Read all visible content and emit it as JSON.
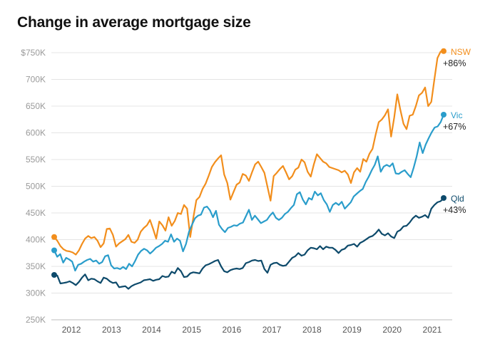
{
  "chart_data": {
    "type": "line",
    "title": "Change in average mortgage size",
    "xlabel": "",
    "ylabel": "",
    "x_ticks": [
      "2012",
      "2013",
      "2014",
      "2015",
      "2016",
      "2017",
      "2018",
      "2019",
      "2020",
      "2021"
    ],
    "x_start": 2011.5,
    "x_end": 2021.5,
    "y_ticks": [
      "250K",
      "300K",
      "350K",
      "400K",
      "450K",
      "500K",
      "550K",
      "600K",
      "650K",
      "700K",
      "$750K"
    ],
    "ylim": [
      250000,
      750000
    ],
    "grid": true,
    "legend": "end-of-line labels",
    "series": [
      {
        "name": "NSW",
        "change_label": "+86%",
        "color": "#f28e1c",
        "values": [
          405000,
          398000,
          388000,
          382000,
          379000,
          378000,
          376000,
          372000,
          380000,
          392000,
          402000,
          407000,
          403000,
          405000,
          398000,
          386000,
          393000,
          420000,
          421000,
          409000,
          387000,
          393000,
          397000,
          401000,
          409000,
          396000,
          394000,
          400000,
          415000,
          422000,
          427000,
          437000,
          420000,
          402000,
          434000,
          427000,
          417000,
          442000,
          426000,
          435000,
          450000,
          448000,
          465000,
          458000,
          405000,
          441000,
          474000,
          480000,
          495000,
          505000,
          520000,
          536000,
          545000,
          552000,
          558000,
          522000,
          506000,
          475000,
          489000,
          503000,
          507000,
          523000,
          520000,
          510000,
          526000,
          541000,
          546000,
          536000,
          525000,
          499000,
          473000,
          519000,
          525000,
          532000,
          538000,
          526000,
          513000,
          519000,
          531000,
          535000,
          550000,
          545000,
          527000,
          518000,
          541000,
          560000,
          553000,
          546000,
          543000,
          536000,
          534000,
          532000,
          530000,
          526000,
          529000,
          522000,
          506000,
          526000,
          534000,
          527000,
          551000,
          546000,
          561000,
          570000,
          597000,
          620000,
          625000,
          633000,
          644000,
          593000,
          629000,
          672000,
          643000,
          617000,
          607000,
          632000,
          634000,
          650000,
          670000,
          675000,
          685000,
          650000,
          658000,
          700000,
          740000,
          752000,
          753000
        ]
      },
      {
        "name": "Vic",
        "change_label": "+67%",
        "color": "#2a9dcb",
        "values": [
          380000,
          368000,
          373000,
          357000,
          366000,
          363000,
          359000,
          342000,
          353000,
          355000,
          359000,
          362000,
          364000,
          359000,
          361000,
          355000,
          358000,
          369000,
          371000,
          352000,
          346000,
          347000,
          345000,
          349000,
          345000,
          355000,
          350000,
          360000,
          372000,
          379000,
          383000,
          380000,
          374000,
          379000,
          385000,
          388000,
          392000,
          398000,
          396000,
          410000,
          396000,
          402000,
          398000,
          378000,
          392000,
          415000,
          428000,
          440000,
          445000,
          447000,
          460000,
          462000,
          455000,
          442000,
          454000,
          428000,
          420000,
          414000,
          422000,
          424000,
          427000,
          426000,
          430000,
          432000,
          444000,
          456000,
          437000,
          445000,
          438000,
          431000,
          434000,
          437000,
          445000,
          451000,
          441000,
          437000,
          441000,
          448000,
          452000,
          459000,
          465000,
          485000,
          489000,
          475000,
          466000,
          478000,
          475000,
          490000,
          483000,
          487000,
          474000,
          466000,
          452000,
          465000,
          469000,
          465000,
          471000,
          458000,
          464000,
          470000,
          481000,
          486000,
          491000,
          495000,
          508000,
          518000,
          530000,
          540000,
          556000,
          527000,
          537000,
          540000,
          537000,
          543000,
          524000,
          523000,
          527000,
          530000,
          523000,
          517000,
          535000,
          556000,
          582000,
          562000,
          578000,
          590000,
          601000,
          610000,
          612000,
          620000,
          634000
        ]
      },
      {
        "name": "Qld",
        "change_label": "+43%",
        "color": "#0d4a6b",
        "values": [
          334000,
          333000,
          318000,
          319000,
          320000,
          322000,
          319000,
          315000,
          321000,
          329000,
          335000,
          324000,
          327000,
          326000,
          322000,
          319000,
          329000,
          327000,
          322000,
          319000,
          320000,
          311000,
          312000,
          313000,
          308000,
          313000,
          316000,
          318000,
          320000,
          324000,
          325000,
          326000,
          323000,
          325000,
          326000,
          332000,
          330000,
          331000,
          340000,
          337000,
          347000,
          341000,
          330000,
          331000,
          337000,
          339000,
          338000,
          337000,
          346000,
          352000,
          354000,
          357000,
          360000,
          362000,
          350000,
          341000,
          339000,
          343000,
          345000,
          346000,
          345000,
          347000,
          356000,
          358000,
          361000,
          362000,
          360000,
          361000,
          345000,
          338000,
          353000,
          356000,
          357000,
          353000,
          351000,
          352000,
          359000,
          366000,
          369000,
          375000,
          370000,
          372000,
          380000,
          385000,
          384000,
          382000,
          388000,
          382000,
          387000,
          385000,
          385000,
          381000,
          375000,
          381000,
          383000,
          389000,
          390000,
          392000,
          387000,
          394000,
          397000,
          401000,
          405000,
          407000,
          412000,
          419000,
          411000,
          408000,
          412000,
          406000,
          403000,
          415000,
          418000,
          425000,
          426000,
          432000,
          440000,
          445000,
          441000,
          443000,
          446000,
          441000,
          458000,
          465000,
          470000,
          472000,
          478000
        ]
      }
    ]
  }
}
